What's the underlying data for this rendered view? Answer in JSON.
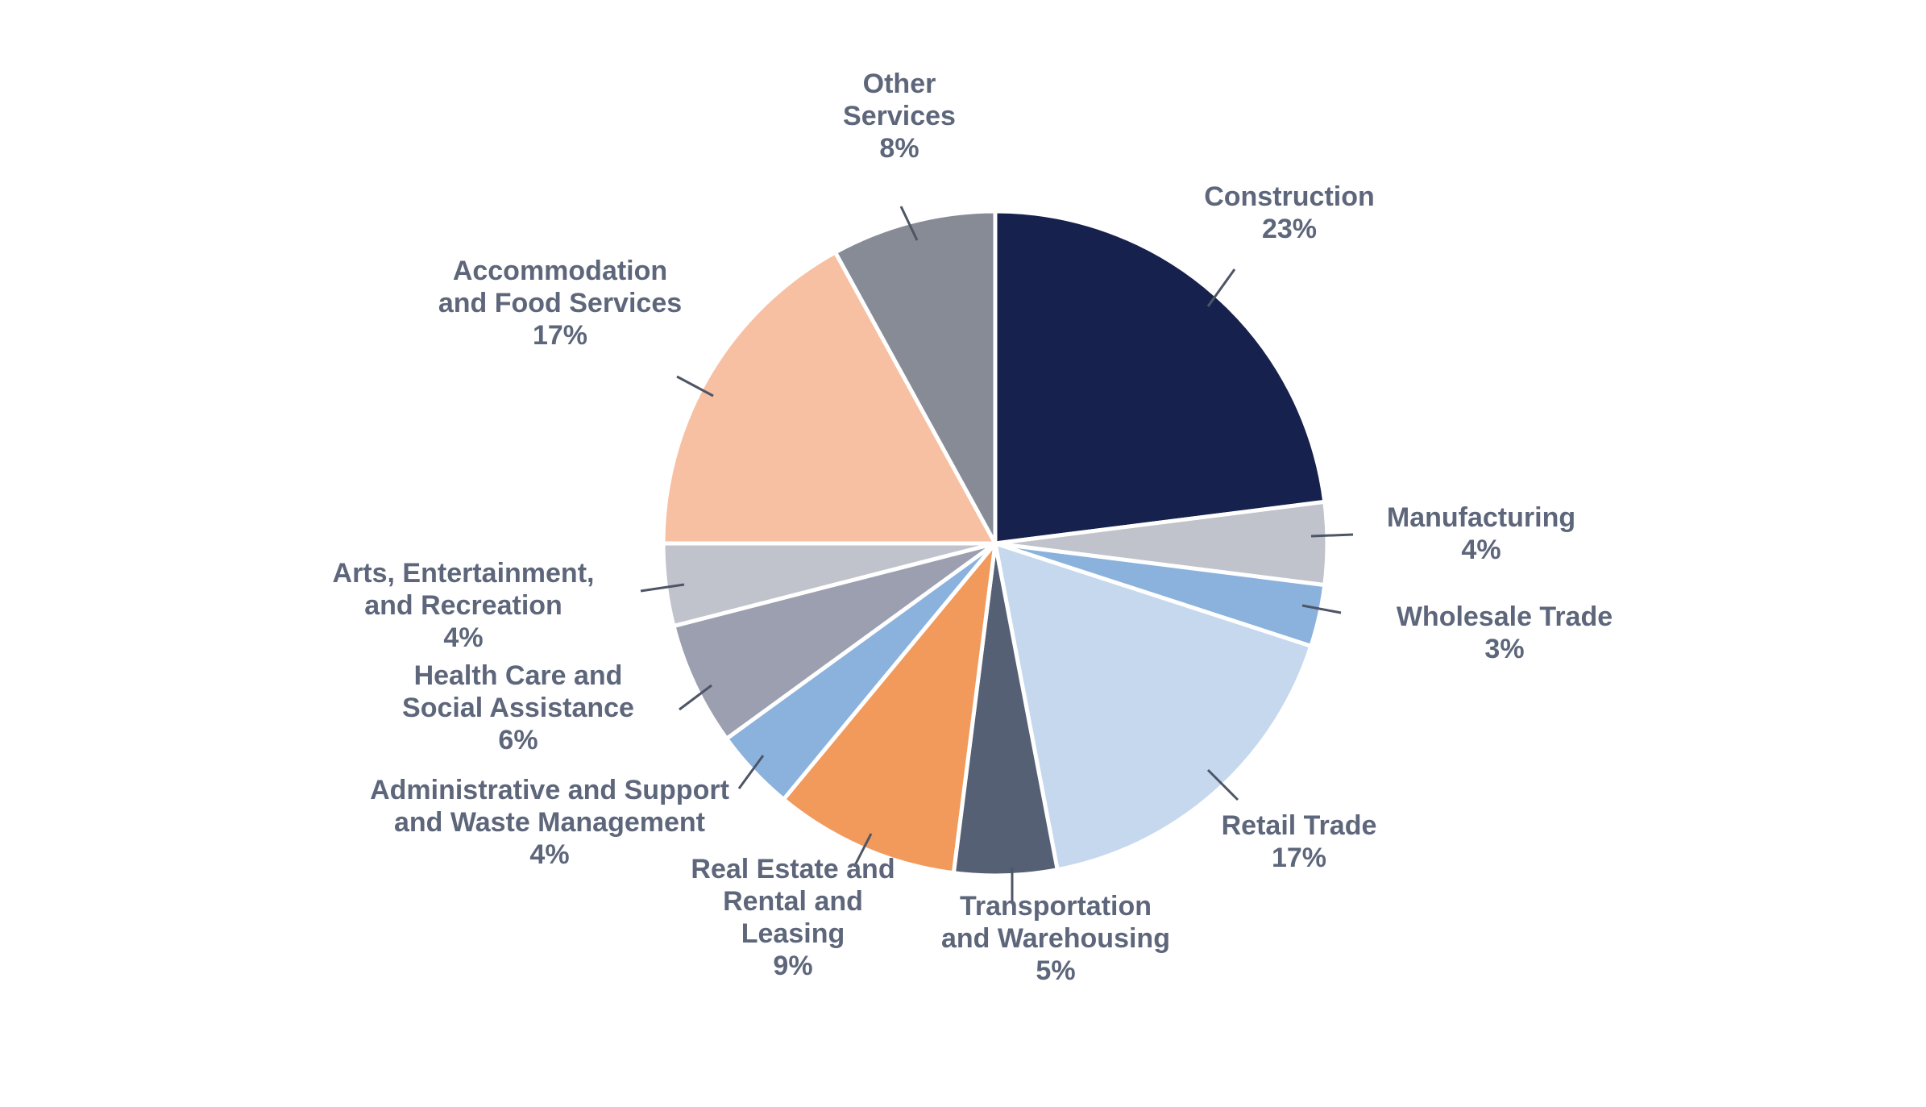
{
  "chart_data": {
    "type": "pie",
    "title": "",
    "start_angle_deg": 0,
    "direction": "clockwise",
    "slices": [
      {
        "label": [
          "Construction"
        ],
        "value": 23,
        "pct_text": "23%",
        "color": "#16214d"
      },
      {
        "label": [
          "Manufacturing"
        ],
        "value": 4,
        "pct_text": "4%",
        "color": "#c0c2cc"
      },
      {
        "label": [
          "Wholesale Trade"
        ],
        "value": 3,
        "pct_text": "3%",
        "color": "#8ab2dc"
      },
      {
        "label": [
          "Retail Trade"
        ],
        "value": 17,
        "pct_text": "17%",
        "color": "#c5d8ed"
      },
      {
        "label": [
          "Transportation",
          "and Warehousing"
        ],
        "value": 5,
        "pct_text": "5%",
        "color": "#556074"
      },
      {
        "label": [
          "Real Estate and",
          "Rental and",
          "Leasing"
        ],
        "value": 9,
        "pct_text": "9%",
        "color": "#f2995c"
      },
      {
        "label": [
          "Administrative and Support",
          "and Waste Management"
        ],
        "value": 4,
        "pct_text": "4%",
        "color": "#8ab2dc"
      },
      {
        "label": [
          "Health Care and",
          "Social Assistance"
        ],
        "value": 6,
        "pct_text": "6%",
        "color": "#9c9fb0"
      },
      {
        "label": [
          "Arts, Entertainment,",
          "and Recreation"
        ],
        "value": 4,
        "pct_text": "4%",
        "color": "#c0c2cc"
      },
      {
        "label": [
          "Accommodation",
          "and Food Services"
        ],
        "value": 17,
        "pct_text": "17%",
        "color": "#f8c0a2"
      },
      {
        "label": [
          "Other",
          "Services"
        ],
        "value": 8,
        "pct_text": "8%",
        "color": "#868b96"
      }
    ]
  }
}
